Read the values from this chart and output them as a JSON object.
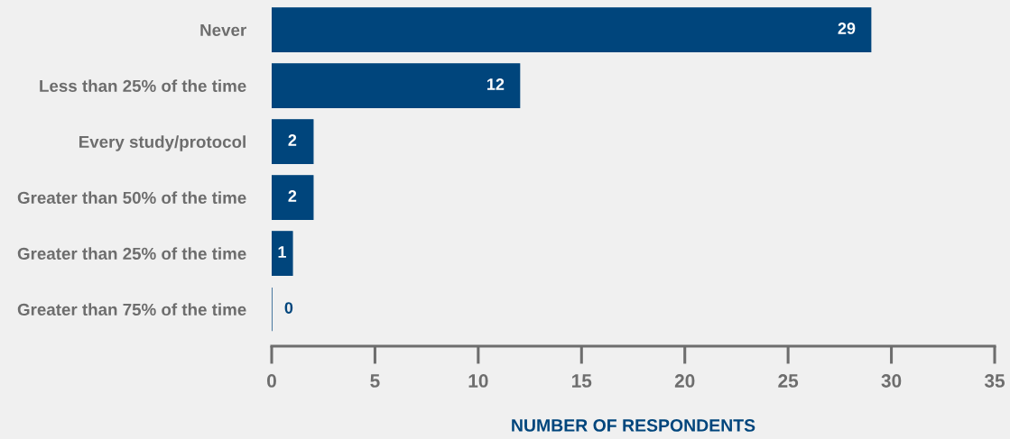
{
  "chart_data": {
    "type": "bar",
    "orientation": "horizontal",
    "categories": [
      "Never",
      "Less than 25% of the time",
      "Every study/protocol",
      "Greater than 50% of the time",
      "Greater than 25% of the time",
      "Greater than 75% of the time"
    ],
    "values": [
      29,
      12,
      2,
      2,
      1,
      0
    ],
    "color": "#00457c",
    "xlabel": "NUMBER OF RESPONDENTS",
    "xlim": [
      0,
      35
    ],
    "xticks": [
      0,
      5,
      10,
      15,
      20,
      25,
      30,
      35
    ],
    "data_labels": true,
    "grid": false,
    "legend": false
  }
}
